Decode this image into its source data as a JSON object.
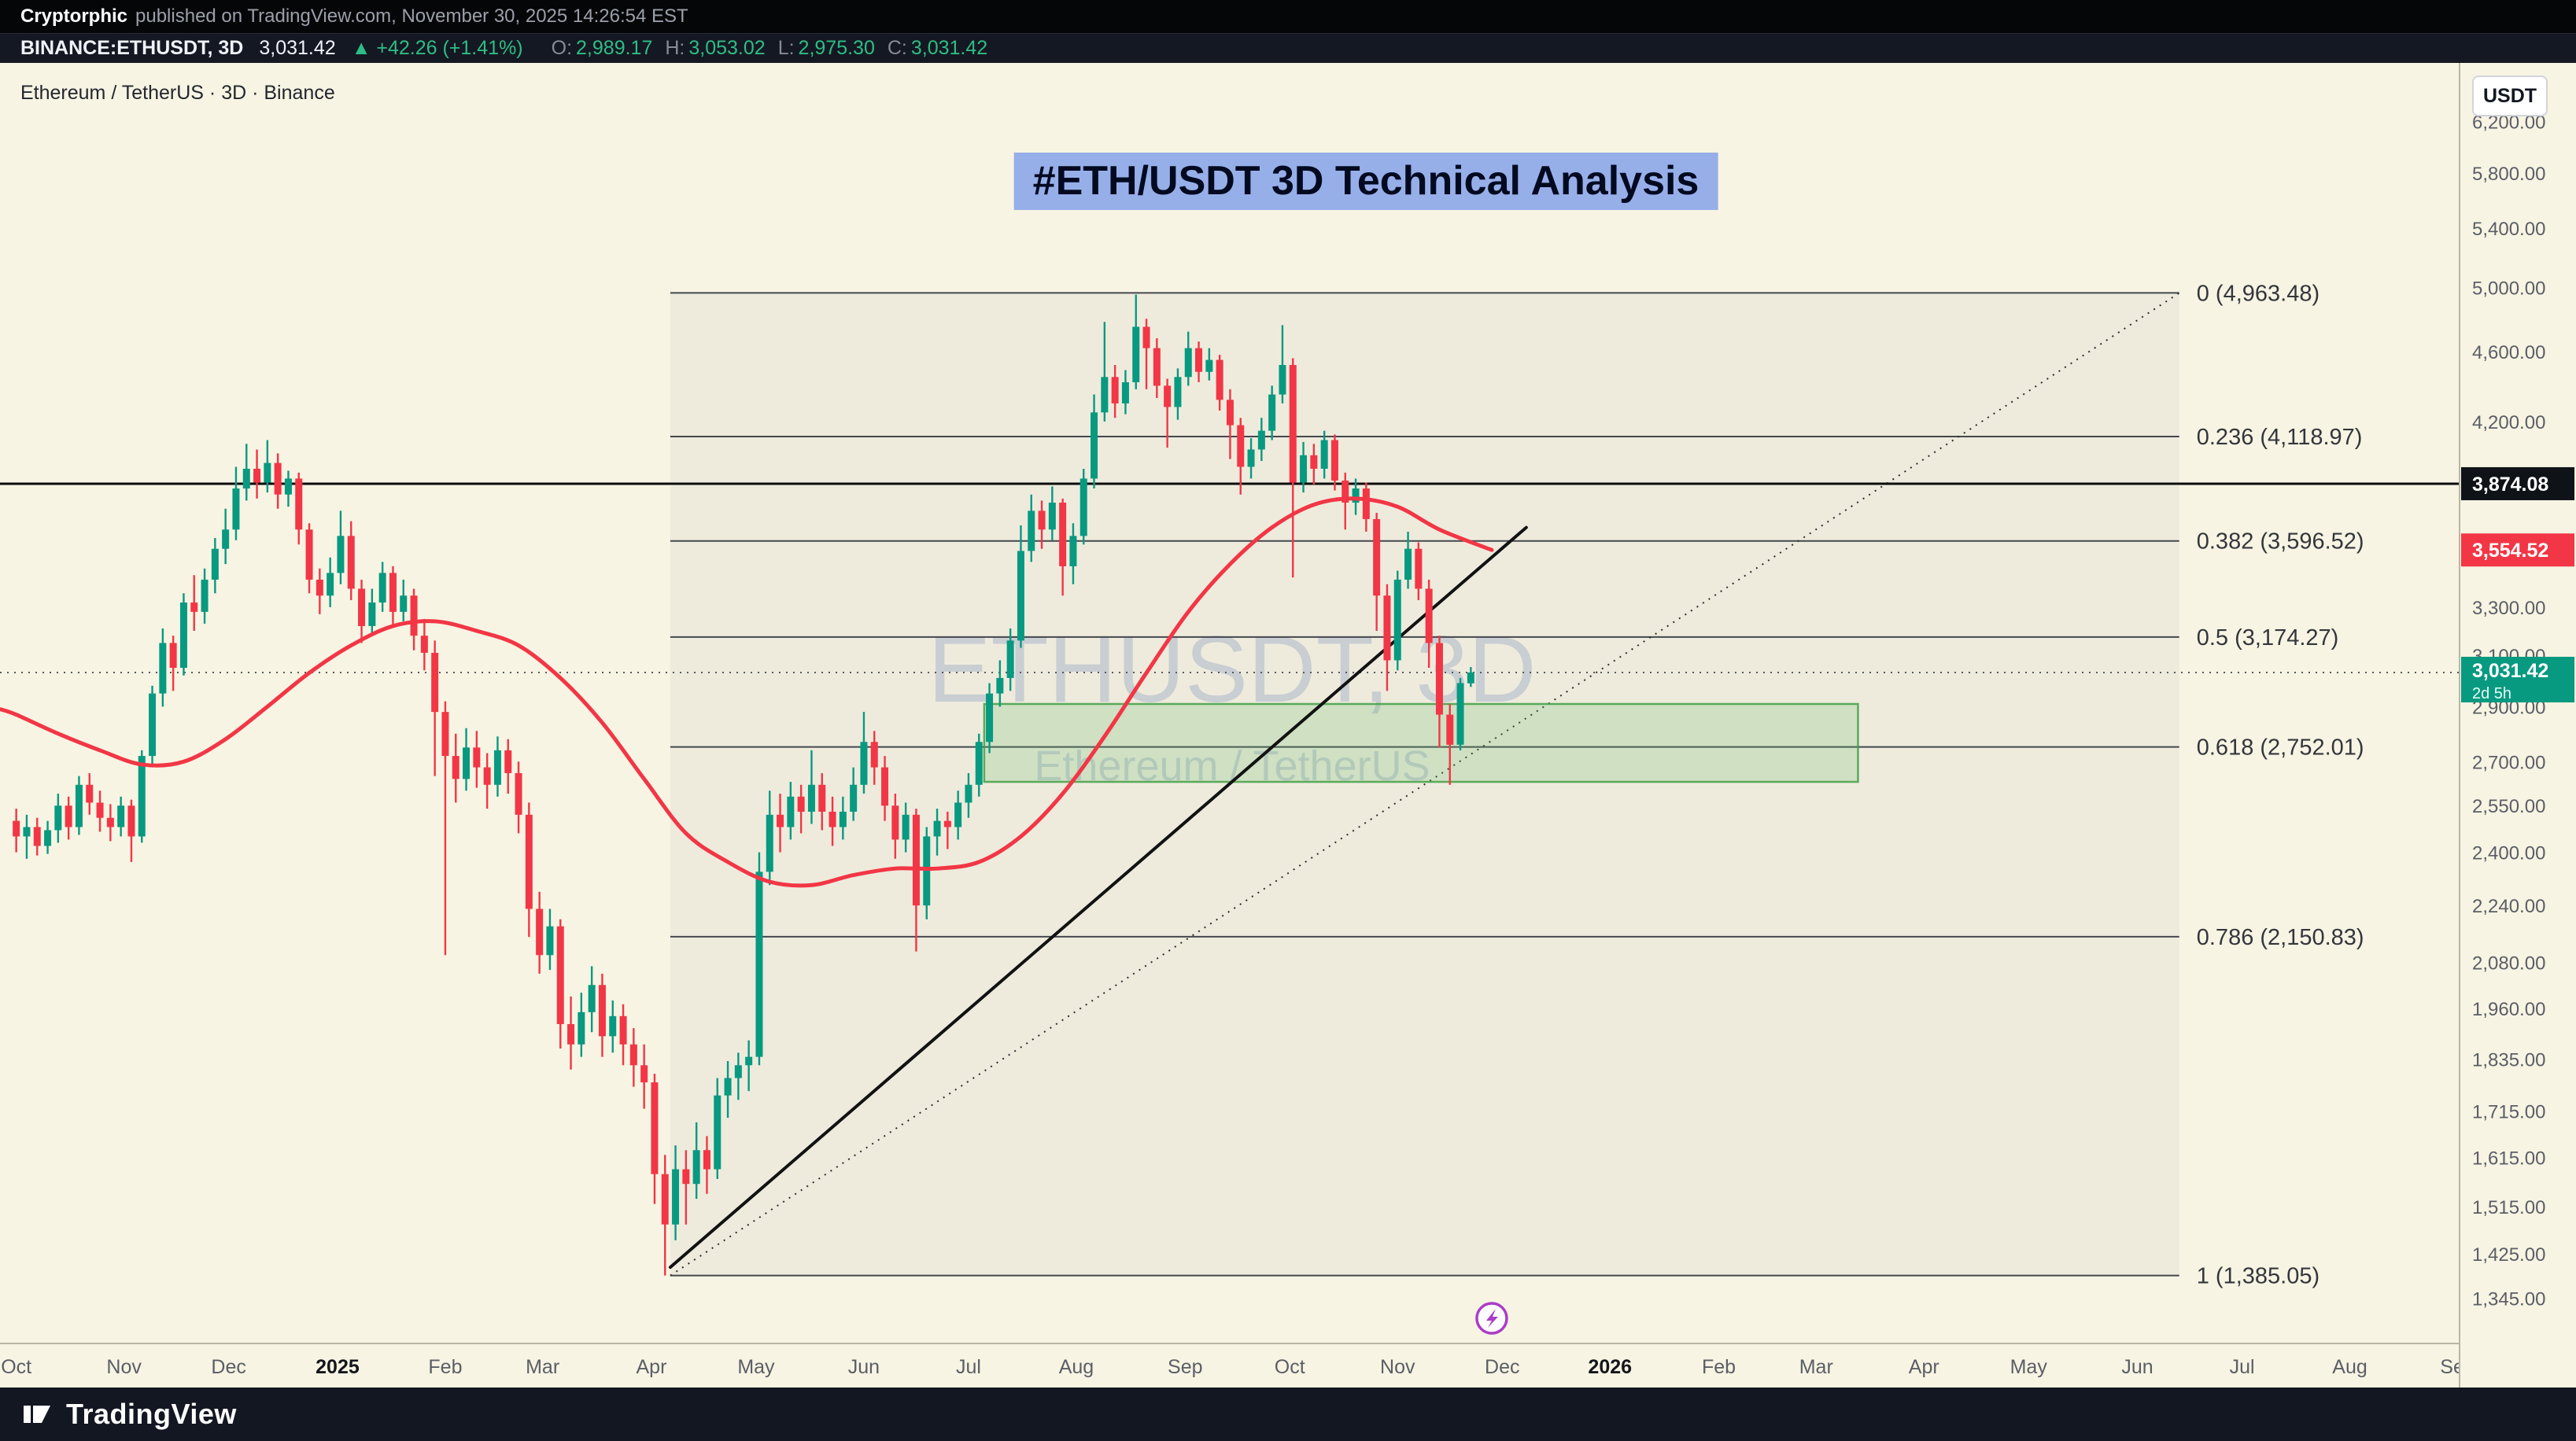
{
  "attribution": {
    "author": "Cryptorphic",
    "rest": "published on TradingView.com, November 30, 2025 14:26:54 EST"
  },
  "symbol_bar": {
    "symbol": "BINANCE:ETHUSDT, 3D",
    "last": "3,031.42",
    "change": "▲ +42.26 (+1.41%)",
    "ohlc": [
      {
        "k": "O",
        "v": "2,989.17"
      },
      {
        "k": "H",
        "v": "3,053.02"
      },
      {
        "k": "L",
        "v": "2,975.30"
      },
      {
        "k": "C",
        "v": "3,031.42"
      }
    ]
  },
  "legend": "Ethereum / TetherUS · 3D · Binance",
  "annotation_title": "#ETH/USDT 3D Technical Analysis",
  "watermark": {
    "line1": "ETHUSDT, 3D",
    "line2": "Ethereum / TetherUS"
  },
  "axis_button": "USDT",
  "footer_brand": "TradingView",
  "colors": {
    "chart_bg": "#f7f4e3",
    "up": "#089981",
    "down": "#f23645",
    "ma": "#f23645",
    "hline": "#0c0c0e",
    "fib_line": "#45474e",
    "fib_text": "#34363c",
    "fib_zone_fill": "rgba(128,131,142,0.07)",
    "zone_fill": "rgba(102,187,106,0.22)",
    "zone_border": "rgba(67,160,71,0.85)",
    "watermark": "rgba(121,146,190,0.32)",
    "axis_text": "#5b5e66",
    "axis_line": "#b9b6a5",
    "flag_black": "#0f1318",
    "accent_green_text": "#2ebd85",
    "annotation_highlight": "rgba(73,119,239,0.55)"
  },
  "chart_data": {
    "type": "candlestick",
    "symbol": "BINANCE:ETHUSDT",
    "timeframe": "3D",
    "scale": "log",
    "title": "#ETH/USDT 3D Technical Analysis",
    "x_axis": {
      "start_date": "2024-10-01",
      "bar_interval_days": 3,
      "ticks": [
        {
          "label": "Oct",
          "idx": 0
        },
        {
          "label": "Nov",
          "idx": 10.3
        },
        {
          "label": "Dec",
          "idx": 20.3
        },
        {
          "label": "2025",
          "idx": 30.7,
          "strong": true
        },
        {
          "label": "Feb",
          "idx": 41
        },
        {
          "label": "Mar",
          "idx": 50.3
        },
        {
          "label": "Apr",
          "idx": 60.7
        },
        {
          "label": "May",
          "idx": 70.7
        },
        {
          "label": "Jun",
          "idx": 81
        },
        {
          "label": "Jul",
          "idx": 91
        },
        {
          "label": "Aug",
          "idx": 101.3
        },
        {
          "label": "Sep",
          "idx": 111.7
        },
        {
          "label": "Oct",
          "idx": 121.7
        },
        {
          "label": "Nov",
          "idx": 132
        },
        {
          "label": "Dec",
          "idx": 142
        },
        {
          "label": "2026",
          "idx": 152.3,
          "strong": true
        },
        {
          "label": "Feb",
          "idx": 162.7
        },
        {
          "label": "Mar",
          "idx": 172
        },
        {
          "label": "Apr",
          "idx": 182.3
        },
        {
          "label": "May",
          "idx": 192.3
        },
        {
          "label": "Jun",
          "idx": 202.7
        },
        {
          "label": "Jul",
          "idx": 212.7
        },
        {
          "label": "Aug",
          "idx": 223
        },
        {
          "label": "Sep",
          "idx": 233.3
        }
      ]
    },
    "y_axis": {
      "range": [
        1268,
        6692
      ],
      "ticks": [
        {
          "label": "6,200.00",
          "value": 6200
        },
        {
          "label": "5,800.00",
          "value": 5800
        },
        {
          "label": "5,400.00",
          "value": 5400
        },
        {
          "label": "5,000.00",
          "value": 5000
        },
        {
          "label": "4,600.00",
          "value": 4600
        },
        {
          "label": "4,200.00",
          "value": 4200
        },
        {
          "label": "3,300.00",
          "value": 3300
        },
        {
          "label": "3,100.00",
          "value": 3100
        },
        {
          "label": "2,900.00",
          "value": 2900
        },
        {
          "label": "2,700.00",
          "value": 2700
        },
        {
          "label": "2,550.00",
          "value": 2550
        },
        {
          "label": "2,400.00",
          "value": 2400
        },
        {
          "label": "2,240.00",
          "value": 2240
        },
        {
          "label": "2,080.00",
          "value": 2080
        },
        {
          "label": "1,960.00",
          "value": 1960
        },
        {
          "label": "1,835.00",
          "value": 1835
        },
        {
          "label": "1,715.00",
          "value": 1715
        },
        {
          "label": "1,615.00",
          "value": 1615
        },
        {
          "label": "1,515.00",
          "value": 1515
        },
        {
          "label": "1,425.00",
          "value": 1425
        },
        {
          "label": "1,345.00",
          "value": 1345
        }
      ]
    },
    "candles_ohlc": [
      [
        2500,
        2540,
        2400,
        2450
      ],
      [
        2450,
        2520,
        2380,
        2480
      ],
      [
        2480,
        2510,
        2390,
        2420
      ],
      [
        2420,
        2500,
        2395,
        2470
      ],
      [
        2470,
        2590,
        2430,
        2550
      ],
      [
        2550,
        2580,
        2440,
        2480
      ],
      [
        2480,
        2650,
        2455,
        2620
      ],
      [
        2620,
        2660,
        2520,
        2560
      ],
      [
        2560,
        2600,
        2465,
        2510
      ],
      [
        2510,
        2555,
        2435,
        2480
      ],
      [
        2480,
        2580,
        2450,
        2550
      ],
      [
        2550,
        2570,
        2370,
        2450
      ],
      [
        2450,
        2740,
        2430,
        2720
      ],
      [
        2720,
        2980,
        2680,
        2950
      ],
      [
        2950,
        3210,
        2900,
        3150
      ],
      [
        3150,
        3180,
        2960,
        3050
      ],
      [
        3050,
        3360,
        3020,
        3320
      ],
      [
        3320,
        3440,
        3200,
        3280
      ],
      [
        3280,
        3470,
        3230,
        3420
      ],
      [
        3420,
        3610,
        3360,
        3560
      ],
      [
        3560,
        3750,
        3490,
        3650
      ],
      [
        3650,
        3960,
        3600,
        3850
      ],
      [
        3850,
        4080,
        3790,
        3950
      ],
      [
        3950,
        4050,
        3800,
        3880
      ],
      [
        3880,
        4100,
        3830,
        3980
      ],
      [
        3980,
        4030,
        3750,
        3820
      ],
      [
        3820,
        3940,
        3760,
        3900
      ],
      [
        3900,
        3930,
        3580,
        3650
      ],
      [
        3650,
        3680,
        3360,
        3420
      ],
      [
        3420,
        3470,
        3270,
        3350
      ],
      [
        3350,
        3520,
        3300,
        3450
      ],
      [
        3450,
        3740,
        3400,
        3620
      ],
      [
        3620,
        3690,
        3330,
        3380
      ],
      [
        3380,
        3420,
        3150,
        3220
      ],
      [
        3220,
        3380,
        3180,
        3320
      ],
      [
        3320,
        3500,
        3280,
        3450
      ],
      [
        3450,
        3480,
        3220,
        3280
      ],
      [
        3280,
        3420,
        3240,
        3350
      ],
      [
        3350,
        3380,
        3120,
        3180
      ],
      [
        3180,
        3250,
        3040,
        3110
      ],
      [
        3110,
        3160,
        2650,
        2880
      ],
      [
        2880,
        2920,
        2100,
        2720
      ],
      [
        2720,
        2800,
        2560,
        2640
      ],
      [
        2640,
        2820,
        2600,
        2750
      ],
      [
        2750,
        2810,
        2610,
        2680
      ],
      [
        2680,
        2730,
        2540,
        2620
      ],
      [
        2620,
        2790,
        2580,
        2740
      ],
      [
        2740,
        2780,
        2590,
        2660
      ],
      [
        2660,
        2700,
        2460,
        2520
      ],
      [
        2520,
        2560,
        2150,
        2230
      ],
      [
        2230,
        2280,
        2050,
        2100
      ],
      [
        2100,
        2230,
        2060,
        2180
      ],
      [
        2180,
        2200,
        1860,
        1920
      ],
      [
        1920,
        1990,
        1810,
        1870
      ],
      [
        1870,
        2000,
        1840,
        1950
      ],
      [
        1950,
        2070,
        1900,
        2020
      ],
      [
        2020,
        2050,
        1840,
        1890
      ],
      [
        1890,
        1980,
        1850,
        1940
      ],
      [
        1940,
        1970,
        1820,
        1870
      ],
      [
        1870,
        1910,
        1770,
        1820
      ],
      [
        1820,
        1870,
        1720,
        1780
      ],
      [
        1780,
        1800,
        1520,
        1580
      ],
      [
        1580,
        1620,
        1385,
        1480
      ],
      [
        1480,
        1640,
        1450,
        1590
      ],
      [
        1590,
        1630,
        1480,
        1560
      ],
      [
        1560,
        1690,
        1530,
        1630
      ],
      [
        1630,
        1660,
        1540,
        1590
      ],
      [
        1590,
        1790,
        1570,
        1750
      ],
      [
        1750,
        1830,
        1700,
        1790
      ],
      [
        1790,
        1850,
        1740,
        1820
      ],
      [
        1820,
        1880,
        1760,
        1840
      ],
      [
        1840,
        2400,
        1820,
        2340
      ],
      [
        2340,
        2600,
        2300,
        2520
      ],
      [
        2520,
        2590,
        2400,
        2480
      ],
      [
        2480,
        2630,
        2440,
        2580
      ],
      [
        2580,
        2620,
        2460,
        2530
      ],
      [
        2530,
        2740,
        2490,
        2620
      ],
      [
        2620,
        2660,
        2470,
        2530
      ],
      [
        2530,
        2580,
        2420,
        2480
      ],
      [
        2480,
        2580,
        2440,
        2530
      ],
      [
        2530,
        2680,
        2500,
        2620
      ],
      [
        2620,
        2880,
        2590,
        2770
      ],
      [
        2770,
        2810,
        2620,
        2680
      ],
      [
        2680,
        2720,
        2500,
        2550
      ],
      [
        2550,
        2590,
        2380,
        2440
      ],
      [
        2440,
        2560,
        2400,
        2520
      ],
      [
        2520,
        2540,
        2110,
        2240
      ],
      [
        2240,
        2480,
        2200,
        2450
      ],
      [
        2450,
        2540,
        2390,
        2500
      ],
      [
        2500,
        2530,
        2410,
        2480
      ],
      [
        2480,
        2600,
        2440,
        2560
      ],
      [
        2560,
        2660,
        2510,
        2620
      ],
      [
        2620,
        2800,
        2580,
        2770
      ],
      [
        2770,
        2990,
        2730,
        2950
      ],
      [
        2950,
        3080,
        2900,
        3010
      ],
      [
        3010,
        3210,
        2960,
        3160
      ],
      [
        3160,
        3670,
        3130,
        3550
      ],
      [
        3550,
        3820,
        3500,
        3740
      ],
      [
        3740,
        3790,
        3560,
        3650
      ],
      [
        3650,
        3860,
        3600,
        3780
      ],
      [
        3780,
        3800,
        3350,
        3480
      ],
      [
        3480,
        3680,
        3400,
        3620
      ],
      [
        3620,
        3950,
        3580,
        3900
      ],
      [
        3900,
        4350,
        3850,
        4250
      ],
      [
        4250,
        4780,
        4200,
        4450
      ],
      [
        4450,
        4520,
        4220,
        4300
      ],
      [
        4300,
        4490,
        4240,
        4420
      ],
      [
        4420,
        4953,
        4380,
        4750
      ],
      [
        4750,
        4800,
        4380,
        4620
      ],
      [
        4620,
        4680,
        4330,
        4400
      ],
      [
        4400,
        4440,
        4060,
        4280
      ],
      [
        4280,
        4500,
        4210,
        4450
      ],
      [
        4450,
        4720,
        4400,
        4620
      ],
      [
        4620,
        4660,
        4420,
        4480
      ],
      [
        4480,
        4620,
        4430,
        4550
      ],
      [
        4550,
        4580,
        4260,
        4320
      ],
      [
        4320,
        4380,
        4000,
        4180
      ],
      [
        4180,
        4220,
        3820,
        3960
      ],
      [
        3960,
        4110,
        3900,
        4050
      ],
      [
        4050,
        4220,
        3990,
        4150
      ],
      [
        4150,
        4400,
        4100,
        4350
      ],
      [
        4350,
        4760,
        4300,
        4520
      ],
      [
        4520,
        4560,
        3430,
        3880
      ],
      [
        3880,
        4090,
        3830,
        4020
      ],
      [
        4020,
        4080,
        3870,
        3950
      ],
      [
        3950,
        4150,
        3900,
        4100
      ],
      [
        4100,
        4130,
        3840,
        3890
      ],
      [
        3890,
        3930,
        3650,
        3780
      ],
      [
        3780,
        3900,
        3720,
        3850
      ],
      [
        3850,
        3880,
        3640,
        3700
      ],
      [
        3700,
        3730,
        3200,
        3350
      ],
      [
        3350,
        3400,
        2960,
        3080
      ],
      [
        3080,
        3460,
        3040,
        3420
      ],
      [
        3420,
        3640,
        3380,
        3560
      ],
      [
        3560,
        3590,
        3330,
        3380
      ],
      [
        3380,
        3420,
        3050,
        3150
      ],
      [
        3150,
        3180,
        2750,
        2870
      ],
      [
        2870,
        2910,
        2620,
        2760
      ],
      [
        2760,
        3010,
        2740,
        2990
      ],
      [
        2989.17,
        3053.02,
        2975.3,
        3031.42
      ]
    ],
    "ma_line": {
      "name": "moving-average",
      "color": "#f23645",
      "points": [
        [
          -1.5,
          2890
        ],
        [
          0,
          2870
        ],
        [
          4,
          2800
        ],
        [
          8,
          2740
        ],
        [
          12,
          2690
        ],
        [
          16,
          2700
        ],
        [
          20,
          2780
        ],
        [
          24,
          2900
        ],
        [
          28,
          3030
        ],
        [
          32,
          3140
        ],
        [
          36,
          3220
        ],
        [
          40,
          3240
        ],
        [
          44,
          3200
        ],
        [
          48,
          3140
        ],
        [
          52,
          3010
        ],
        [
          56,
          2840
        ],
        [
          60,
          2640
        ],
        [
          64,
          2460
        ],
        [
          68,
          2370
        ],
        [
          72,
          2310
        ],
        [
          76,
          2300
        ],
        [
          80,
          2330
        ],
        [
          84,
          2350
        ],
        [
          88,
          2350
        ],
        [
          92,
          2370
        ],
        [
          96,
          2450
        ],
        [
          100,
          2590
        ],
        [
          104,
          2790
        ],
        [
          108,
          3030
        ],
        [
          112,
          3280
        ],
        [
          116,
          3490
        ],
        [
          120,
          3660
        ],
        [
          124,
          3770
        ],
        [
          128,
          3800
        ],
        [
          132,
          3760
        ],
        [
          136,
          3650
        ],
        [
          141,
          3554.52
        ]
      ]
    },
    "fib_retracement": {
      "idx_range": [
        62.5,
        206.7
      ],
      "levels": [
        {
          "ratio": "0",
          "price": 4963.48,
          "label": "0 (4,963.48)"
        },
        {
          "ratio": "0.236",
          "price": 4118.97,
          "label": "0.236 (4,118.97)"
        },
        {
          "ratio": "0.382",
          "price": 3596.52,
          "label": "0.382 (3,596.52)"
        },
        {
          "ratio": "0.5",
          "price": 3174.27,
          "label": "0.5 (3,174.27)"
        },
        {
          "ratio": "0.618",
          "price": 2752.01,
          "label": "0.618 (2,752.01)"
        },
        {
          "ratio": "0.786",
          "price": 2150.83,
          "label": "0.786 (2,150.83)"
        },
        {
          "ratio": "1",
          "price": 1385.05,
          "label": "1 (1,385.05)"
        }
      ]
    },
    "trendline": {
      "points": [
        [
          62.5,
          1400
        ],
        [
          144.3,
          3660
        ]
      ]
    },
    "dotted_trendline": {
      "points": [
        [
          62.5,
          1385.05
        ],
        [
          206.7,
          4963.48
        ]
      ]
    },
    "demand_zone": {
      "idx_range": [
        92.5,
        176
      ],
      "price_range": [
        2630,
        2910
      ]
    },
    "horizontal_line": {
      "price": 3874.08,
      "label": "3,874.08"
    },
    "ma_value_flag": {
      "price": 3554.52,
      "label": "3,554.52"
    },
    "last_price": {
      "price": 3031.42,
      "label": "3,031.42",
      "countdown": "2d 5h"
    },
    "event_marker": {
      "idx": 141,
      "glyph": "lightning"
    }
  }
}
